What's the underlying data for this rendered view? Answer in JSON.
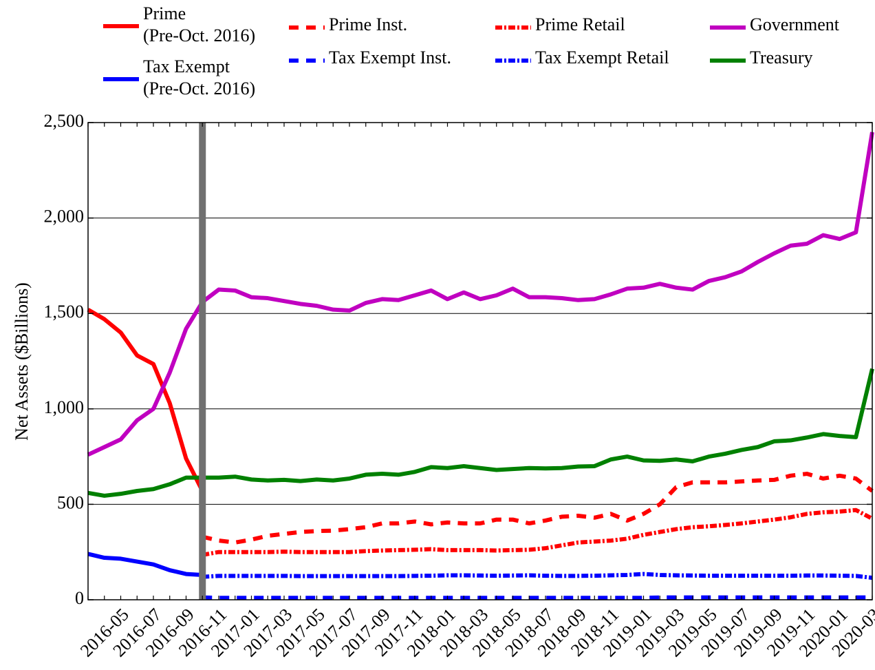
{
  "chart_data": {
    "type": "line",
    "y_label": "Net Assets ($Billions)",
    "categories": [
      null,
      null,
      "2016-05",
      null,
      "2016-07",
      null,
      "2016-09",
      null,
      "2016-11",
      null,
      "2017-01",
      null,
      "2017-03",
      null,
      "2017-05",
      null,
      "2017-07",
      null,
      "2017-09",
      null,
      "2017-11",
      null,
      "2018-01",
      null,
      "2018-03",
      null,
      "2018-05",
      null,
      "2018-07",
      null,
      "2018-09",
      null,
      "2018-11",
      null,
      "2019-01",
      null,
      "2019-03",
      null,
      "2019-05",
      null,
      "2019-07",
      null,
      "2019-09",
      null,
      "2019-11",
      null,
      "2020-01",
      null,
      "2020-03"
    ],
    "ylim": [
      0,
      2500
    ],
    "yticks": [
      0,
      500,
      {
        "value": 1000,
        "label": "1,000"
      },
      {
        "value": 1500,
        "label": "1,500"
      },
      {
        "value": 2000,
        "label": "2,000"
      },
      {
        "value": 2500,
        "label": "2,500"
      }
    ],
    "grid": true,
    "series": [
      {
        "name": "Prime\n(Pre-Oct. 2016)",
        "color": "#ff0000",
        "style": "solid",
        "values": [
          1520,
          1470,
          1400,
          1280,
          1235,
          1030,
          740,
          570,
          null,
          null,
          null,
          null,
          null,
          null,
          null,
          null,
          null,
          null,
          null,
          null,
          null,
          null,
          null,
          null,
          null,
          null,
          null,
          null,
          null,
          null,
          null,
          null,
          null,
          null,
          null,
          null,
          null,
          null,
          null,
          null,
          null,
          null,
          null,
          null,
          null,
          null,
          null,
          null,
          null
        ]
      },
      {
        "name": "Tax Exempt\n(Pre-Oct. 2016)",
        "color": "#0000ff",
        "style": "solid",
        "values": [
          240,
          220,
          215,
          200,
          185,
          155,
          135,
          130,
          null,
          null,
          null,
          null,
          null,
          null,
          null,
          null,
          null,
          null,
          null,
          null,
          null,
          null,
          null,
          null,
          null,
          null,
          null,
          null,
          null,
          null,
          null,
          null,
          null,
          null,
          null,
          null,
          null,
          null,
          null,
          null,
          null,
          null,
          null,
          null,
          null,
          null,
          null,
          null,
          null
        ]
      },
      {
        "name": "Prime Inst.",
        "color": "#ff0000",
        "style": "dashed",
        "values": [
          null,
          null,
          null,
          null,
          null,
          null,
          null,
          330,
          310,
          300,
          315,
          335,
          345,
          355,
          360,
          362,
          370,
          380,
          400,
          400,
          410,
          395,
          405,
          400,
          400,
          420,
          420,
          400,
          415,
          435,
          440,
          430,
          450,
          415,
          450,
          500,
          590,
          615,
          615,
          615,
          620,
          625,
          628,
          650,
          660,
          635,
          650,
          635,
          570
        ]
      },
      {
        "name": "Tax Exempt Inst.",
        "color": "#0000ff",
        "style": "dashed",
        "values": [
          null,
          null,
          null,
          null,
          null,
          null,
          null,
          12,
          10,
          10,
          10,
          10,
          10,
          10,
          10,
          10,
          10,
          10,
          10,
          10,
          10,
          10,
          10,
          10,
          10,
          10,
          10,
          10,
          10,
          10,
          10,
          10,
          10,
          10,
          10,
          12,
          12,
          12,
          12,
          12,
          12,
          12,
          12,
          12,
          12,
          12,
          12,
          12,
          12
        ]
      },
      {
        "name": "Prime Retail",
        "color": "#ff0000",
        "style": "dashdot",
        "values": [
          null,
          null,
          null,
          null,
          null,
          null,
          null,
          235,
          250,
          250,
          250,
          250,
          252,
          250,
          250,
          250,
          250,
          255,
          258,
          260,
          262,
          265,
          260,
          260,
          260,
          258,
          260,
          262,
          270,
          285,
          300,
          305,
          310,
          320,
          340,
          355,
          370,
          380,
          385,
          392,
          400,
          410,
          420,
          432,
          450,
          458,
          462,
          470,
          425
        ]
      },
      {
        "name": "Tax Exempt Retail",
        "color": "#0000ff",
        "style": "dashdot",
        "values": [
          null,
          null,
          null,
          null,
          null,
          null,
          null,
          120,
          125,
          125,
          125,
          125,
          125,
          124,
          124,
          124,
          124,
          124,
          124,
          124,
          125,
          126,
          128,
          128,
          127,
          126,
          127,
          128,
          126,
          125,
          125,
          126,
          128,
          130,
          135,
          130,
          128,
          127,
          126,
          126,
          126,
          126,
          126,
          126,
          127,
          127,
          126,
          125,
          115
        ]
      },
      {
        "name": "Government",
        "color": "#c000c0",
        "style": "solid",
        "values": [
          760,
          800,
          840,
          940,
          1000,
          1190,
          1420,
          1560,
          1625,
          1620,
          1585,
          1580,
          1565,
          1550,
          1540,
          1520,
          1515,
          1555,
          1575,
          1570,
          1595,
          1620,
          1575,
          1610,
          1575,
          1595,
          1630,
          1585,
          1585,
          1580,
          1570,
          1575,
          1600,
          1630,
          1635,
          1655,
          1635,
          1625,
          1670,
          1690,
          1720,
          1770,
          1815,
          1855,
          1865,
          1910,
          1890,
          1925,
          2450
        ]
      },
      {
        "name": "Treasury",
        "color": "#008000",
        "style": "solid",
        "values": [
          560,
          545,
          555,
          570,
          580,
          605,
          640,
          640,
          640,
          645,
          630,
          625,
          628,
          622,
          630,
          625,
          635,
          655,
          660,
          655,
          670,
          695,
          690,
          700,
          690,
          680,
          685,
          690,
          688,
          690,
          698,
          700,
          735,
          750,
          730,
          728,
          735,
          725,
          750,
          765,
          785,
          800,
          830,
          835,
          850,
          868,
          858,
          852,
          1210
        ]
      }
    ]
  }
}
